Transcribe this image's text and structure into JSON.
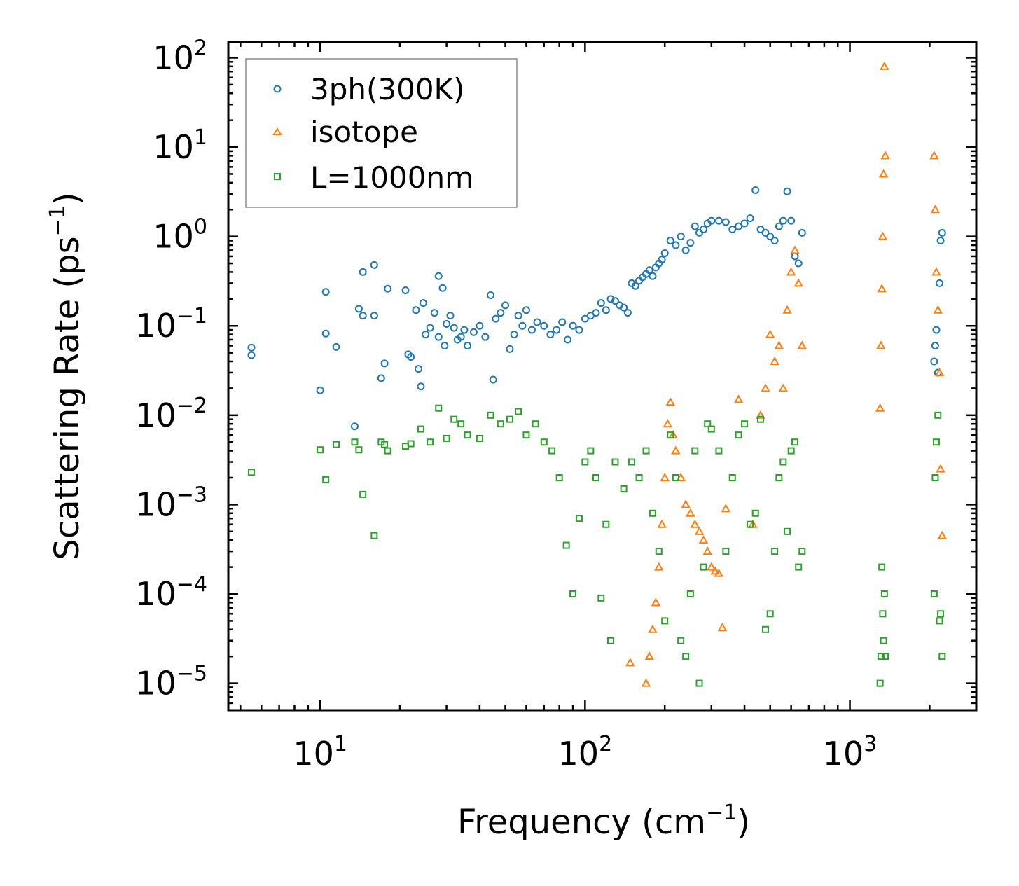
{
  "chart_data": {
    "type": "scatter",
    "title": "",
    "xlabel": "Frequency (cm",
    "xlabel_sup": "−1",
    "xlabel_end": ")",
    "ylabel": "Scattering Rate (ps",
    "ylabel_sup": "−1",
    "ylabel_end": ")",
    "xscale": "log",
    "yscale": "log",
    "xlim": [
      4.5,
      3000
    ],
    "ylim": [
      5e-06,
      150
    ],
    "xticks": [
      {
        "value": 10,
        "base": "10",
        "exp": "1"
      },
      {
        "value": 100,
        "base": "10",
        "exp": "2"
      },
      {
        "value": 1000,
        "base": "10",
        "exp": "3"
      }
    ],
    "yticks": [
      {
        "value": 1e-05,
        "base": "10",
        "exp": "−5"
      },
      {
        "value": 0.0001,
        "base": "10",
        "exp": "−4"
      },
      {
        "value": 0.001,
        "base": "10",
        "exp": "−3"
      },
      {
        "value": 0.01,
        "base": "10",
        "exp": "−2"
      },
      {
        "value": 0.1,
        "base": "10",
        "exp": "−1"
      },
      {
        "value": 1,
        "base": "10",
        "exp": "0"
      },
      {
        "value": 10,
        "base": "10",
        "exp": "1"
      },
      {
        "value": 100,
        "base": "10",
        "exp": "2"
      }
    ],
    "grid": false,
    "legend_position": "top-left",
    "series": [
      {
        "name": "3ph(300K)",
        "marker": "circle",
        "color": "#1f77b4",
        "x": [
          5.5,
          5.5,
          10,
          10.5,
          10.5,
          11.5,
          13.5,
          14,
          14.5,
          14.5,
          16,
          16,
          17,
          17.5,
          18,
          21,
          21.5,
          22,
          23,
          23.5,
          24,
          24.5,
          25,
          26,
          27,
          28,
          28,
          29,
          29.5,
          30,
          31,
          32,
          33,
          34,
          35,
          36,
          38,
          40,
          42,
          44,
          45,
          46,
          48,
          50,
          52,
          54,
          56,
          58,
          60,
          63,
          66,
          70,
          74,
          78,
          82,
          86,
          90,
          95,
          100,
          105,
          110,
          115,
          120,
          125,
          130,
          135,
          140,
          145,
          150,
          155,
          160,
          165,
          170,
          175,
          180,
          185,
          190,
          195,
          200,
          210,
          220,
          230,
          240,
          250,
          260,
          270,
          280,
          290,
          300,
          320,
          340,
          360,
          380,
          400,
          420,
          440,
          460,
          480,
          500,
          520,
          540,
          560,
          580,
          600,
          620,
          640,
          660,
          2080,
          2100,
          2120,
          2150,
          2180,
          2200,
          2230
        ],
        "y": [
          0.057,
          0.047,
          0.019,
          0.24,
          0.082,
          0.058,
          0.0075,
          0.155,
          0.13,
          0.4,
          0.48,
          0.13,
          0.026,
          0.038,
          0.26,
          0.25,
          0.048,
          0.045,
          0.15,
          0.033,
          0.021,
          0.18,
          0.08,
          0.095,
          0.14,
          0.36,
          0.075,
          0.265,
          0.06,
          0.105,
          0.13,
          0.095,
          0.07,
          0.075,
          0.09,
          0.06,
          0.085,
          0.1,
          0.075,
          0.22,
          0.025,
          0.12,
          0.14,
          0.17,
          0.055,
          0.08,
          0.13,
          0.1,
          0.15,
          0.09,
          0.11,
          0.1,
          0.08,
          0.09,
          0.11,
          0.07,
          0.1,
          0.09,
          0.12,
          0.13,
          0.14,
          0.18,
          0.15,
          0.2,
          0.19,
          0.17,
          0.16,
          0.14,
          0.3,
          0.28,
          0.32,
          0.35,
          0.38,
          0.42,
          0.36,
          0.45,
          0.5,
          0.55,
          0.65,
          0.9,
          0.8,
          1.0,
          0.7,
          0.85,
          1.3,
          1.1,
          1.2,
          1.4,
          1.5,
          1.5,
          1.45,
          1.2,
          1.3,
          1.4,
          1.6,
          3.3,
          1.2,
          1.1,
          1.0,
          0.9,
          1.3,
          1.5,
          3.2,
          1.5,
          0.6,
          0.5,
          1.1,
          0.04,
          0.06,
          0.09,
          0.03,
          0.3,
          0.9,
          1.1
        ]
      },
      {
        "name": "isotope",
        "marker": "triangle",
        "color": "#ff7f0e",
        "x": [
          148,
          170,
          175,
          180,
          185,
          190,
          195,
          200,
          205,
          210,
          215,
          220,
          230,
          240,
          250,
          260,
          270,
          280,
          290,
          300,
          310,
          320,
          330,
          340,
          380,
          430,
          460,
          480,
          500,
          520,
          540,
          560,
          580,
          600,
          620,
          640,
          660,
          1300,
          1310,
          1320,
          1330,
          1340,
          1350,
          1360,
          2080,
          2100,
          2120,
          2150,
          2180,
          2200,
          2230
        ],
        "y": [
          1.7e-05,
          1e-05,
          2e-05,
          4e-05,
          8e-05,
          0.0002,
          0.0006,
          0.002,
          0.008,
          0.014,
          0.006,
          0.004,
          0.002,
          0.001,
          0.0008,
          0.0006,
          0.0005,
          0.0004,
          0.0003,
          0.0002,
          0.00018,
          0.00017,
          4.2e-05,
          0.0009,
          0.015,
          0.0006,
          0.01,
          0.02,
          0.08,
          0.04,
          0.06,
          0.02,
          0.15,
          0.4,
          0.7,
          0.3,
          0.06,
          0.012,
          0.06,
          0.26,
          1.0,
          5.0,
          80,
          8.0,
          8.0,
          2.0,
          0.4,
          0.15,
          0.03,
          0.0025,
          0.00045
        ]
      },
      {
        "name": "L=1000nm",
        "marker": "square",
        "color": "#2ca02c",
        "x": [
          5.5,
          10,
          10.5,
          11.5,
          13.5,
          14,
          14.5,
          16,
          17,
          17.5,
          18,
          21,
          22,
          24,
          26,
          28,
          30,
          32,
          34,
          36,
          40,
          44,
          48,
          52,
          56,
          60,
          65,
          70,
          75,
          80,
          85,
          90,
          95,
          100,
          105,
          110,
          115,
          120,
          125,
          130,
          140,
          150,
          160,
          170,
          180,
          190,
          200,
          210,
          220,
          230,
          240,
          250,
          260,
          270,
          280,
          290,
          300,
          320,
          340,
          360,
          380,
          400,
          420,
          440,
          460,
          480,
          500,
          520,
          540,
          560,
          580,
          600,
          620,
          640,
          660,
          1300,
          1310,
          1320,
          1330,
          1340,
          1350,
          1360,
          2080,
          2100,
          2120,
          2150,
          2180,
          2200,
          2230
        ],
        "y": [
          0.0023,
          0.0041,
          0.0019,
          0.0047,
          0.005,
          0.0041,
          0.0013,
          0.00045,
          0.005,
          0.0047,
          0.004,
          0.0045,
          0.0048,
          0.007,
          0.005,
          0.012,
          0.0055,
          0.009,
          0.008,
          0.006,
          0.0055,
          0.01,
          0.008,
          0.009,
          0.011,
          0.006,
          0.008,
          0.005,
          0.004,
          0.002,
          0.00035,
          0.0001,
          0.0007,
          0.003,
          0.004,
          0.002,
          9e-05,
          0.0006,
          3e-05,
          0.003,
          0.0015,
          0.003,
          0.002,
          0.004,
          0.0008,
          0.0003,
          5e-05,
          0.006,
          0.002,
          3e-05,
          2e-05,
          0.0001,
          0.004,
          1e-05,
          0.0002,
          0.008,
          0.007,
          0.004,
          0.0003,
          0.002,
          0.006,
          0.008,
          0.0006,
          0.0008,
          0.009,
          4e-05,
          6e-05,
          0.0003,
          0.002,
          0.003,
          0.0005,
          0.004,
          0.005,
          0.0002,
          0.0003,
          1e-05,
          2e-05,
          0.0002,
          6e-05,
          3e-05,
          0.0001,
          2e-05,
          0.0001,
          0.002,
          0.005,
          0.01,
          5e-05,
          6e-05,
          2e-05
        ]
      }
    ]
  }
}
